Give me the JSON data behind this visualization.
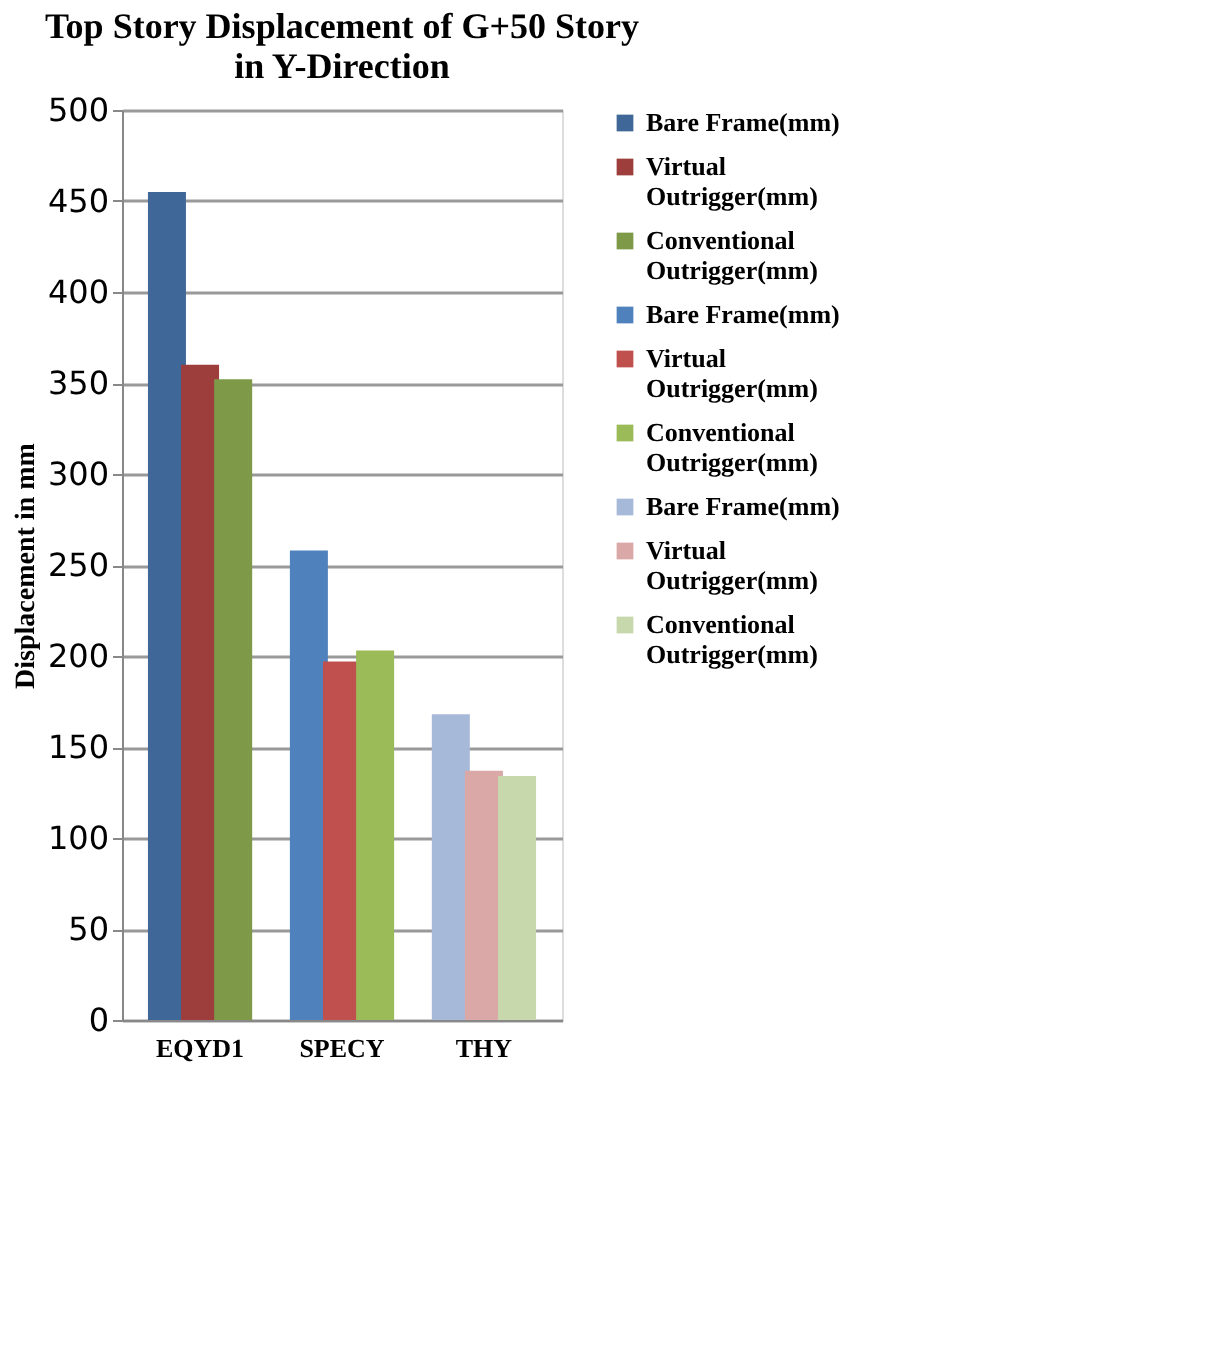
{
  "chart_data": {
    "type": "bar",
    "title": "Top Story Displacement of G+50 Story in Y-Direction",
    "ylabel": "Displacement in mm",
    "categories": [
      "EQYD1",
      "SPECY",
      "THY"
    ],
    "series": [
      {
        "name": "Bare Frame(mm)",
        "color": "#3f6797",
        "values": [
          455,
          null,
          null
        ]
      },
      {
        "name": "Virtual Outrigger(mm)",
        "color": "#9d3e3c",
        "values": [
          360,
          null,
          null
        ]
      },
      {
        "name": "Conventional Outrigger(mm)",
        "color": "#7e9a48",
        "values": [
          352,
          null,
          null
        ]
      },
      {
        "name": "Bare Frame(mm)",
        "color": "#4f81bd",
        "values": [
          null,
          258,
          null
        ]
      },
      {
        "name": "Virtual Outrigger(mm)",
        "color": "#c0504d",
        "values": [
          null,
          197,
          null
        ]
      },
      {
        "name": "Conventional Outrigger(mm)",
        "color": "#9bbb59",
        "values": [
          null,
          203,
          null
        ]
      },
      {
        "name": "Bare Frame(mm)",
        "color": "#a7b9d8",
        "values": [
          null,
          null,
          168
        ]
      },
      {
        "name": "Virtual Outrigger(mm)",
        "color": "#d9a8a7",
        "values": [
          null,
          null,
          137
        ]
      },
      {
        "name": "Conventional Outrigger(mm)",
        "color": "#c8d8ad",
        "values": [
          null,
          null,
          134
        ]
      }
    ],
    "ylim": [
      0,
      500
    ],
    "yticks": [
      0,
      50,
      100,
      150,
      200,
      250,
      300,
      350,
      400,
      450,
      500
    ],
    "grid": "y",
    "legend": "right"
  }
}
